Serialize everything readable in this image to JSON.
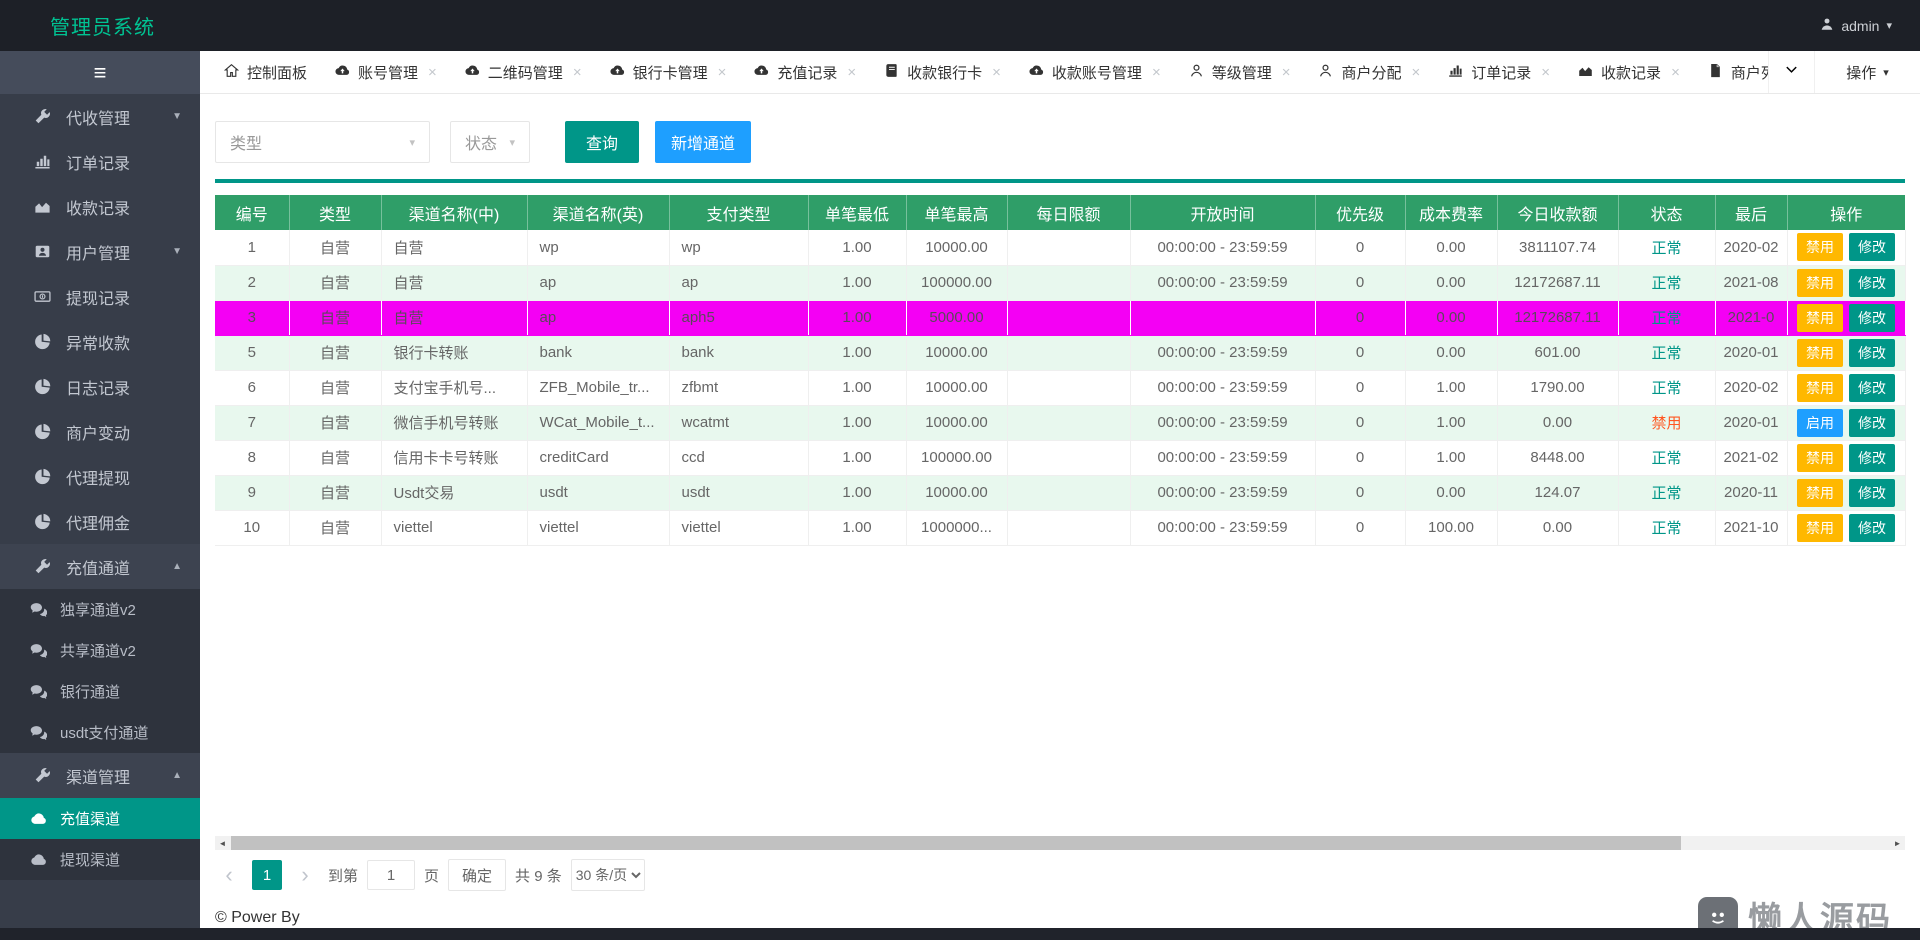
{
  "colors": {
    "teal": "#009688",
    "blue": "#1e9fff",
    "yellow": "#ffb800",
    "red": "#ff5722",
    "header_green": "#2f9e68",
    "brand_green": "#00c292",
    "stripe": "#e8f8ee",
    "magenta": "#f400f4"
  },
  "header": {
    "brand": "管理员系统",
    "user": "admin"
  },
  "tabs": {
    "actions_label": "操作",
    "items": [
      {
        "name": "dashboard",
        "label": "控制面板",
        "icon": "home",
        "closable": false
      },
      {
        "name": "account-mgmt",
        "label": "账号管理",
        "icon": "cloud-up",
        "closable": true
      },
      {
        "name": "qrcode-mgmt",
        "label": "二维码管理",
        "icon": "cloud-up",
        "closable": true
      },
      {
        "name": "bankcard-mgmt",
        "label": "银行卡管理",
        "icon": "cloud-up",
        "closable": true
      },
      {
        "name": "recharge-records",
        "label": "充值记录",
        "icon": "cloud-up",
        "closable": true
      },
      {
        "name": "receiving-bankcard",
        "label": "收款银行卡",
        "icon": "book",
        "closable": true
      },
      {
        "name": "receiving-account-mgmt",
        "label": "收款账号管理",
        "icon": "cloud-up",
        "closable": true
      },
      {
        "name": "level-mgmt",
        "label": "等级管理",
        "icon": "user",
        "closable": true
      },
      {
        "name": "merchant-assign",
        "label": "商户分配",
        "icon": "user",
        "closable": true
      },
      {
        "name": "order-records",
        "label": "订单记录",
        "icon": "bar-chart",
        "closable": true
      },
      {
        "name": "receipt-records",
        "label": "收款记录",
        "icon": "area-chart",
        "closable": true
      },
      {
        "name": "merchant-list",
        "label": "商户列表",
        "icon": "file",
        "closable": false
      }
    ]
  },
  "sidebar": {
    "items": [
      {
        "name": "collection-mgmt",
        "label": "代收管理",
        "icon": "wrench",
        "caret": "down"
      },
      {
        "name": "order-records",
        "label": "订单记录",
        "icon": "bar-chart"
      },
      {
        "name": "receipt-records",
        "label": "收款记录",
        "icon": "area-chart"
      },
      {
        "name": "user-mgmt",
        "label": "用户管理",
        "icon": "id-card",
        "caret": "down"
      },
      {
        "name": "withdraw-records",
        "label": "提现记录",
        "icon": "money"
      },
      {
        "name": "abnormal-receipts",
        "label": "异常收款",
        "icon": "pie"
      },
      {
        "name": "log-records",
        "label": "日志记录",
        "icon": "pie"
      },
      {
        "name": "merchant-changes",
        "label": "商户变动",
        "icon": "pie"
      },
      {
        "name": "agent-withdraw",
        "label": "代理提现",
        "icon": "pie"
      },
      {
        "name": "agent-commission",
        "label": "代理佣金",
        "icon": "pie"
      },
      {
        "name": "recharge-channel-group",
        "label": "充值通道",
        "icon": "wrench",
        "caret": "up",
        "open": true,
        "children": [
          {
            "name": "exclusive-channel-v2",
            "label": "独享通道v2",
            "icon": "comments"
          },
          {
            "name": "shared-channel-v2",
            "label": "共享通道v2",
            "icon": "comments"
          },
          {
            "name": "bank-channel",
            "label": "银行通道",
            "icon": "comments"
          },
          {
            "name": "usdt-pay-channel",
            "label": "usdt支付通道",
            "icon": "comments"
          }
        ]
      },
      {
        "name": "channel-mgmt-group",
        "label": "渠道管理",
        "icon": "wrench",
        "caret": "up",
        "open": true,
        "children": [
          {
            "name": "recharge-channel",
            "label": "充值渠道",
            "icon": "cloud",
            "active": true
          },
          {
            "name": "withdraw-channel",
            "label": "提现渠道",
            "icon": "cloud"
          }
        ]
      }
    ]
  },
  "filters": {
    "type_placeholder": "类型",
    "status_placeholder": "状态",
    "search_label": "查询",
    "add_label": "新增通道"
  },
  "table": {
    "columns": [
      {
        "key": "id",
        "label": "编号"
      },
      {
        "key": "type",
        "label": "类型"
      },
      {
        "key": "name_cn",
        "label": "渠道名称(中)"
      },
      {
        "key": "name_en",
        "label": "渠道名称(英)"
      },
      {
        "key": "pay_type",
        "label": "支付类型"
      },
      {
        "key": "min",
        "label": "单笔最低"
      },
      {
        "key": "max",
        "label": "单笔最高"
      },
      {
        "key": "daily_limit",
        "label": "每日限额"
      },
      {
        "key": "open_time",
        "label": "开放时间"
      },
      {
        "key": "priority",
        "label": "优先级"
      },
      {
        "key": "cost_rate",
        "label": "成本费率"
      },
      {
        "key": "today_amount",
        "label": "今日收款额"
      },
      {
        "key": "status",
        "label": "状态"
      },
      {
        "key": "updated",
        "label": "最后"
      },
      {
        "key": "actions",
        "label": "操作"
      }
    ],
    "rows": [
      {
        "cells": {
          "id": "1",
          "type": "自营",
          "name_cn": "自营",
          "name_en": "wp",
          "pay_type": "wp",
          "min": "1.00",
          "max": "10000.00",
          "daily_limit": "",
          "open_time": "00:00:00 - 23:59:59",
          "priority": "0",
          "cost_rate": "0.00",
          "today_amount": "3811107.74",
          "updated": "2020-02"
        },
        "status": {
          "label": "正常",
          "type": "normal"
        },
        "stripe": false,
        "highlight": false,
        "actions": [
          {
            "name": "disable-button",
            "label": "禁用",
            "style": "warning"
          },
          {
            "name": "edit-button",
            "label": "修改",
            "style": "teal"
          }
        ]
      },
      {
        "cells": {
          "id": "2",
          "type": "自营",
          "name_cn": "自营",
          "name_en": "ap",
          "pay_type": "ap",
          "min": "1.00",
          "max": "100000.00",
          "daily_limit": "",
          "open_time": "00:00:00 - 23:59:59",
          "priority": "0",
          "cost_rate": "0.00",
          "today_amount": "12172687.11",
          "updated": "2021-08"
        },
        "status": {
          "label": "正常",
          "type": "normal"
        },
        "stripe": true,
        "highlight": false,
        "actions": [
          {
            "name": "disable-button",
            "label": "禁用",
            "style": "warning"
          },
          {
            "name": "edit-button",
            "label": "修改",
            "style": "teal"
          }
        ]
      },
      {
        "cells": {
          "id": "3",
          "type": "自营",
          "name_cn": "自营",
          "name_en": "ap",
          "pay_type": "aph5",
          "min": "1.00",
          "max": "5000.00",
          "daily_limit": "",
          "open_time": "",
          "priority": "0",
          "cost_rate": "0.00",
          "today_amount": "12172687.11",
          "updated": "2021-0"
        },
        "status": {
          "label": "正常",
          "type": "normal"
        },
        "stripe": false,
        "highlight": true,
        "actions": [
          {
            "name": "disable-button",
            "label": "禁用",
            "style": "warning"
          },
          {
            "name": "edit-button",
            "label": "修改",
            "style": "teal"
          }
        ]
      },
      {
        "cells": {
          "id": "5",
          "type": "自营",
          "name_cn": "银行卡转账",
          "name_en": "bank",
          "pay_type": "bank",
          "min": "1.00",
          "max": "10000.00",
          "daily_limit": "",
          "open_time": "00:00:00 - 23:59:59",
          "priority": "0",
          "cost_rate": "0.00",
          "today_amount": "601.00",
          "updated": "2020-01"
        },
        "status": {
          "label": "正常",
          "type": "normal"
        },
        "stripe": true,
        "highlight": false,
        "actions": [
          {
            "name": "disable-button",
            "label": "禁用",
            "style": "warning"
          },
          {
            "name": "edit-button",
            "label": "修改",
            "style": "teal"
          }
        ]
      },
      {
        "cells": {
          "id": "6",
          "type": "自营",
          "name_cn": "支付宝手机号...",
          "name_en": "ZFB_Mobile_tr...",
          "pay_type": "zfbmt",
          "min": "1.00",
          "max": "10000.00",
          "daily_limit": "",
          "open_time": "00:00:00 - 23:59:59",
          "priority": "0",
          "cost_rate": "1.00",
          "today_amount": "1790.00",
          "updated": "2020-02"
        },
        "status": {
          "label": "正常",
          "type": "normal"
        },
        "stripe": false,
        "highlight": false,
        "actions": [
          {
            "name": "disable-button",
            "label": "禁用",
            "style": "warning"
          },
          {
            "name": "edit-button",
            "label": "修改",
            "style": "teal"
          }
        ]
      },
      {
        "cells": {
          "id": "7",
          "type": "自营",
          "name_cn": "微信手机号转账",
          "name_en": "WCat_Mobile_t...",
          "pay_type": "wcatmt",
          "min": "1.00",
          "max": "10000.00",
          "daily_limit": "",
          "open_time": "00:00:00 - 23:59:59",
          "priority": "0",
          "cost_rate": "1.00",
          "today_amount": "0.00",
          "updated": "2020-01"
        },
        "status": {
          "label": "禁用",
          "type": "disabled"
        },
        "stripe": true,
        "highlight": false,
        "actions": [
          {
            "name": "enable-button",
            "label": "启用",
            "style": "primary"
          },
          {
            "name": "edit-button",
            "label": "修改",
            "style": "teal"
          }
        ]
      },
      {
        "cells": {
          "id": "8",
          "type": "自营",
          "name_cn": "信用卡卡号转账",
          "name_en": "creditCard",
          "pay_type": "ccd",
          "min": "1.00",
          "max": "100000.00",
          "daily_limit": "",
          "open_time": "00:00:00 - 23:59:59",
          "priority": "0",
          "cost_rate": "1.00",
          "today_amount": "8448.00",
          "updated": "2021-02"
        },
        "status": {
          "label": "正常",
          "type": "normal"
        },
        "stripe": false,
        "highlight": false,
        "actions": [
          {
            "name": "disable-button",
            "label": "禁用",
            "style": "warning"
          },
          {
            "name": "edit-button",
            "label": "修改",
            "style": "teal"
          }
        ]
      },
      {
        "cells": {
          "id": "9",
          "type": "自营",
          "name_cn": "Usdt交易",
          "name_en": "usdt",
          "pay_type": "usdt",
          "min": "1.00",
          "max": "10000.00",
          "daily_limit": "",
          "open_time": "00:00:00 - 23:59:59",
          "priority": "0",
          "cost_rate": "0.00",
          "today_amount": "124.07",
          "updated": "2020-11"
        },
        "status": {
          "label": "正常",
          "type": "normal"
        },
        "stripe": true,
        "highlight": false,
        "actions": [
          {
            "name": "disable-button",
            "label": "禁用",
            "style": "warning"
          },
          {
            "name": "edit-button",
            "label": "修改",
            "style": "teal"
          }
        ]
      },
      {
        "cells": {
          "id": "10",
          "type": "自营",
          "name_cn": "viettel",
          "name_en": "viettel",
          "pay_type": "viettel",
          "min": "1.00",
          "max": "1000000...",
          "daily_limit": "",
          "open_time": "00:00:00 - 23:59:59",
          "priority": "0",
          "cost_rate": "100.00",
          "today_amount": "0.00",
          "updated": "2021-10"
        },
        "status": {
          "label": "正常",
          "type": "normal"
        },
        "stripe": false,
        "highlight": false,
        "actions": [
          {
            "name": "disable-button",
            "label": "禁用",
            "style": "warning"
          },
          {
            "name": "edit-button",
            "label": "修改",
            "style": "teal"
          }
        ]
      }
    ]
  },
  "pagination": {
    "current": "1",
    "goto_label": "到第",
    "goto_value": "1",
    "page_label": "页",
    "confirm_label": "确定",
    "total_label": "共 9 条",
    "page_size": "30 条/页"
  },
  "footer": {
    "copyright": "© Power By"
  },
  "watermark": {
    "text": "懒人源码"
  }
}
